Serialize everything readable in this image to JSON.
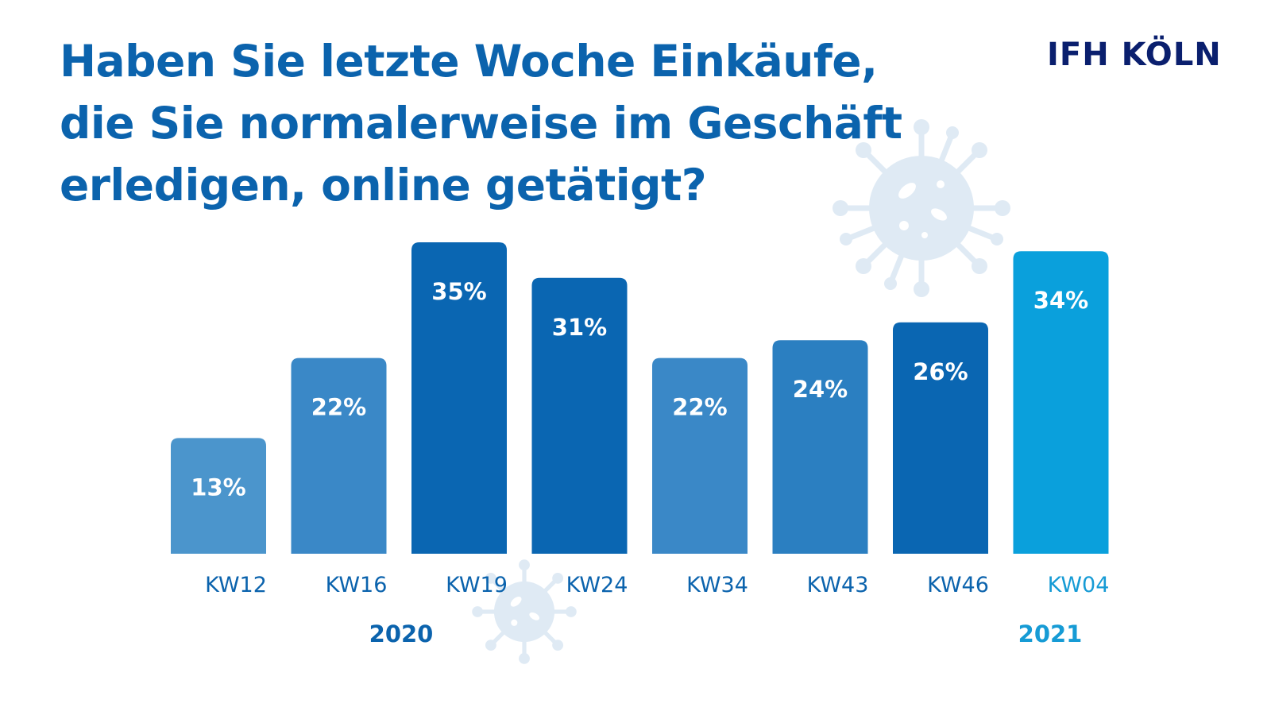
{
  "title_lines": [
    "Haben Sie letzte Woche Einkäufe,",
    "die Sie normalerweise im Geschäft",
    "erledigen, online getätigt?"
  ],
  "logo_text": "IFH KÖLN",
  "colors": {
    "title": "#0b63ad",
    "logo": "#0a1f6e",
    "year_2020": "#0b63ad",
    "year_2021": "#169bd5",
    "virus": "#dfeaf4"
  },
  "decor_icons": [
    "virus-icon",
    "virus-icon"
  ],
  "chart_data": {
    "type": "bar",
    "title": "Haben Sie letzte Woche Einkäufe, die Sie normalerweise im Geschäft erledigen, online getätigt?",
    "xlabel": "",
    "ylabel": "",
    "ylim": [
      0,
      35
    ],
    "grid": false,
    "categories": [
      "KW12",
      "KW16",
      "KW19",
      "KW24",
      "KW34",
      "KW43",
      "KW46",
      "KW04"
    ],
    "values": [
      13,
      22,
      35,
      31,
      22,
      24,
      26,
      34
    ],
    "value_labels": [
      "13%",
      "22%",
      "35%",
      "31%",
      "22%",
      "24%",
      "26%",
      "34%"
    ],
    "bar_colors": [
      "#4b95cc",
      "#3a88c7",
      "#0a66b2",
      "#0a66b2",
      "#3a88c7",
      "#2b7fc1",
      "#0a66b2",
      "#0aa0dc"
    ],
    "category_label_colors": [
      "#0b63ad",
      "#0b63ad",
      "#0b63ad",
      "#0b63ad",
      "#0b63ad",
      "#0b63ad",
      "#0b63ad",
      "#169bd5"
    ],
    "groups": [
      {
        "label": "2020",
        "first": 0,
        "last": 6
      },
      {
        "label": "2021",
        "first": 7,
        "last": 7
      }
    ]
  }
}
